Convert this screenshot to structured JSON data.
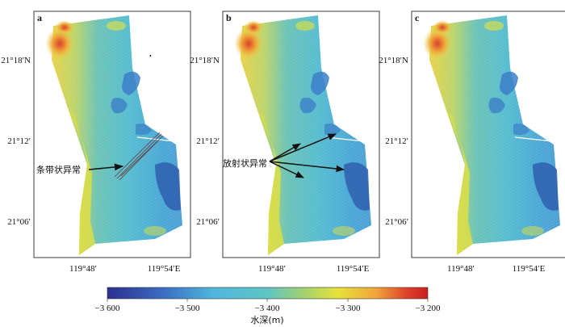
{
  "panels": [
    {
      "letter": "a",
      "annotation": "条带状异常"
    },
    {
      "letter": "b",
      "annotation": "放射状异常"
    },
    {
      "letter": "c",
      "annotation": ""
    }
  ],
  "latitude_ticks": [
    "21°18′N",
    "21°12′",
    "21°06′"
  ],
  "longitude_ticks": [
    "119°48′",
    "119°54′E"
  ],
  "colorbar": {
    "ticks": [
      "−3 600",
      "−3 500",
      "−3 400",
      "−3 300",
      "−3 200"
    ],
    "title": "水深(m)",
    "colors": [
      "#2b2f8c",
      "#3b6fc4",
      "#4fb7de",
      "#5fc4c4",
      "#a6d36b",
      "#e8e23a",
      "#f0a43a",
      "#e0452b",
      "#c81e1e"
    ]
  }
}
